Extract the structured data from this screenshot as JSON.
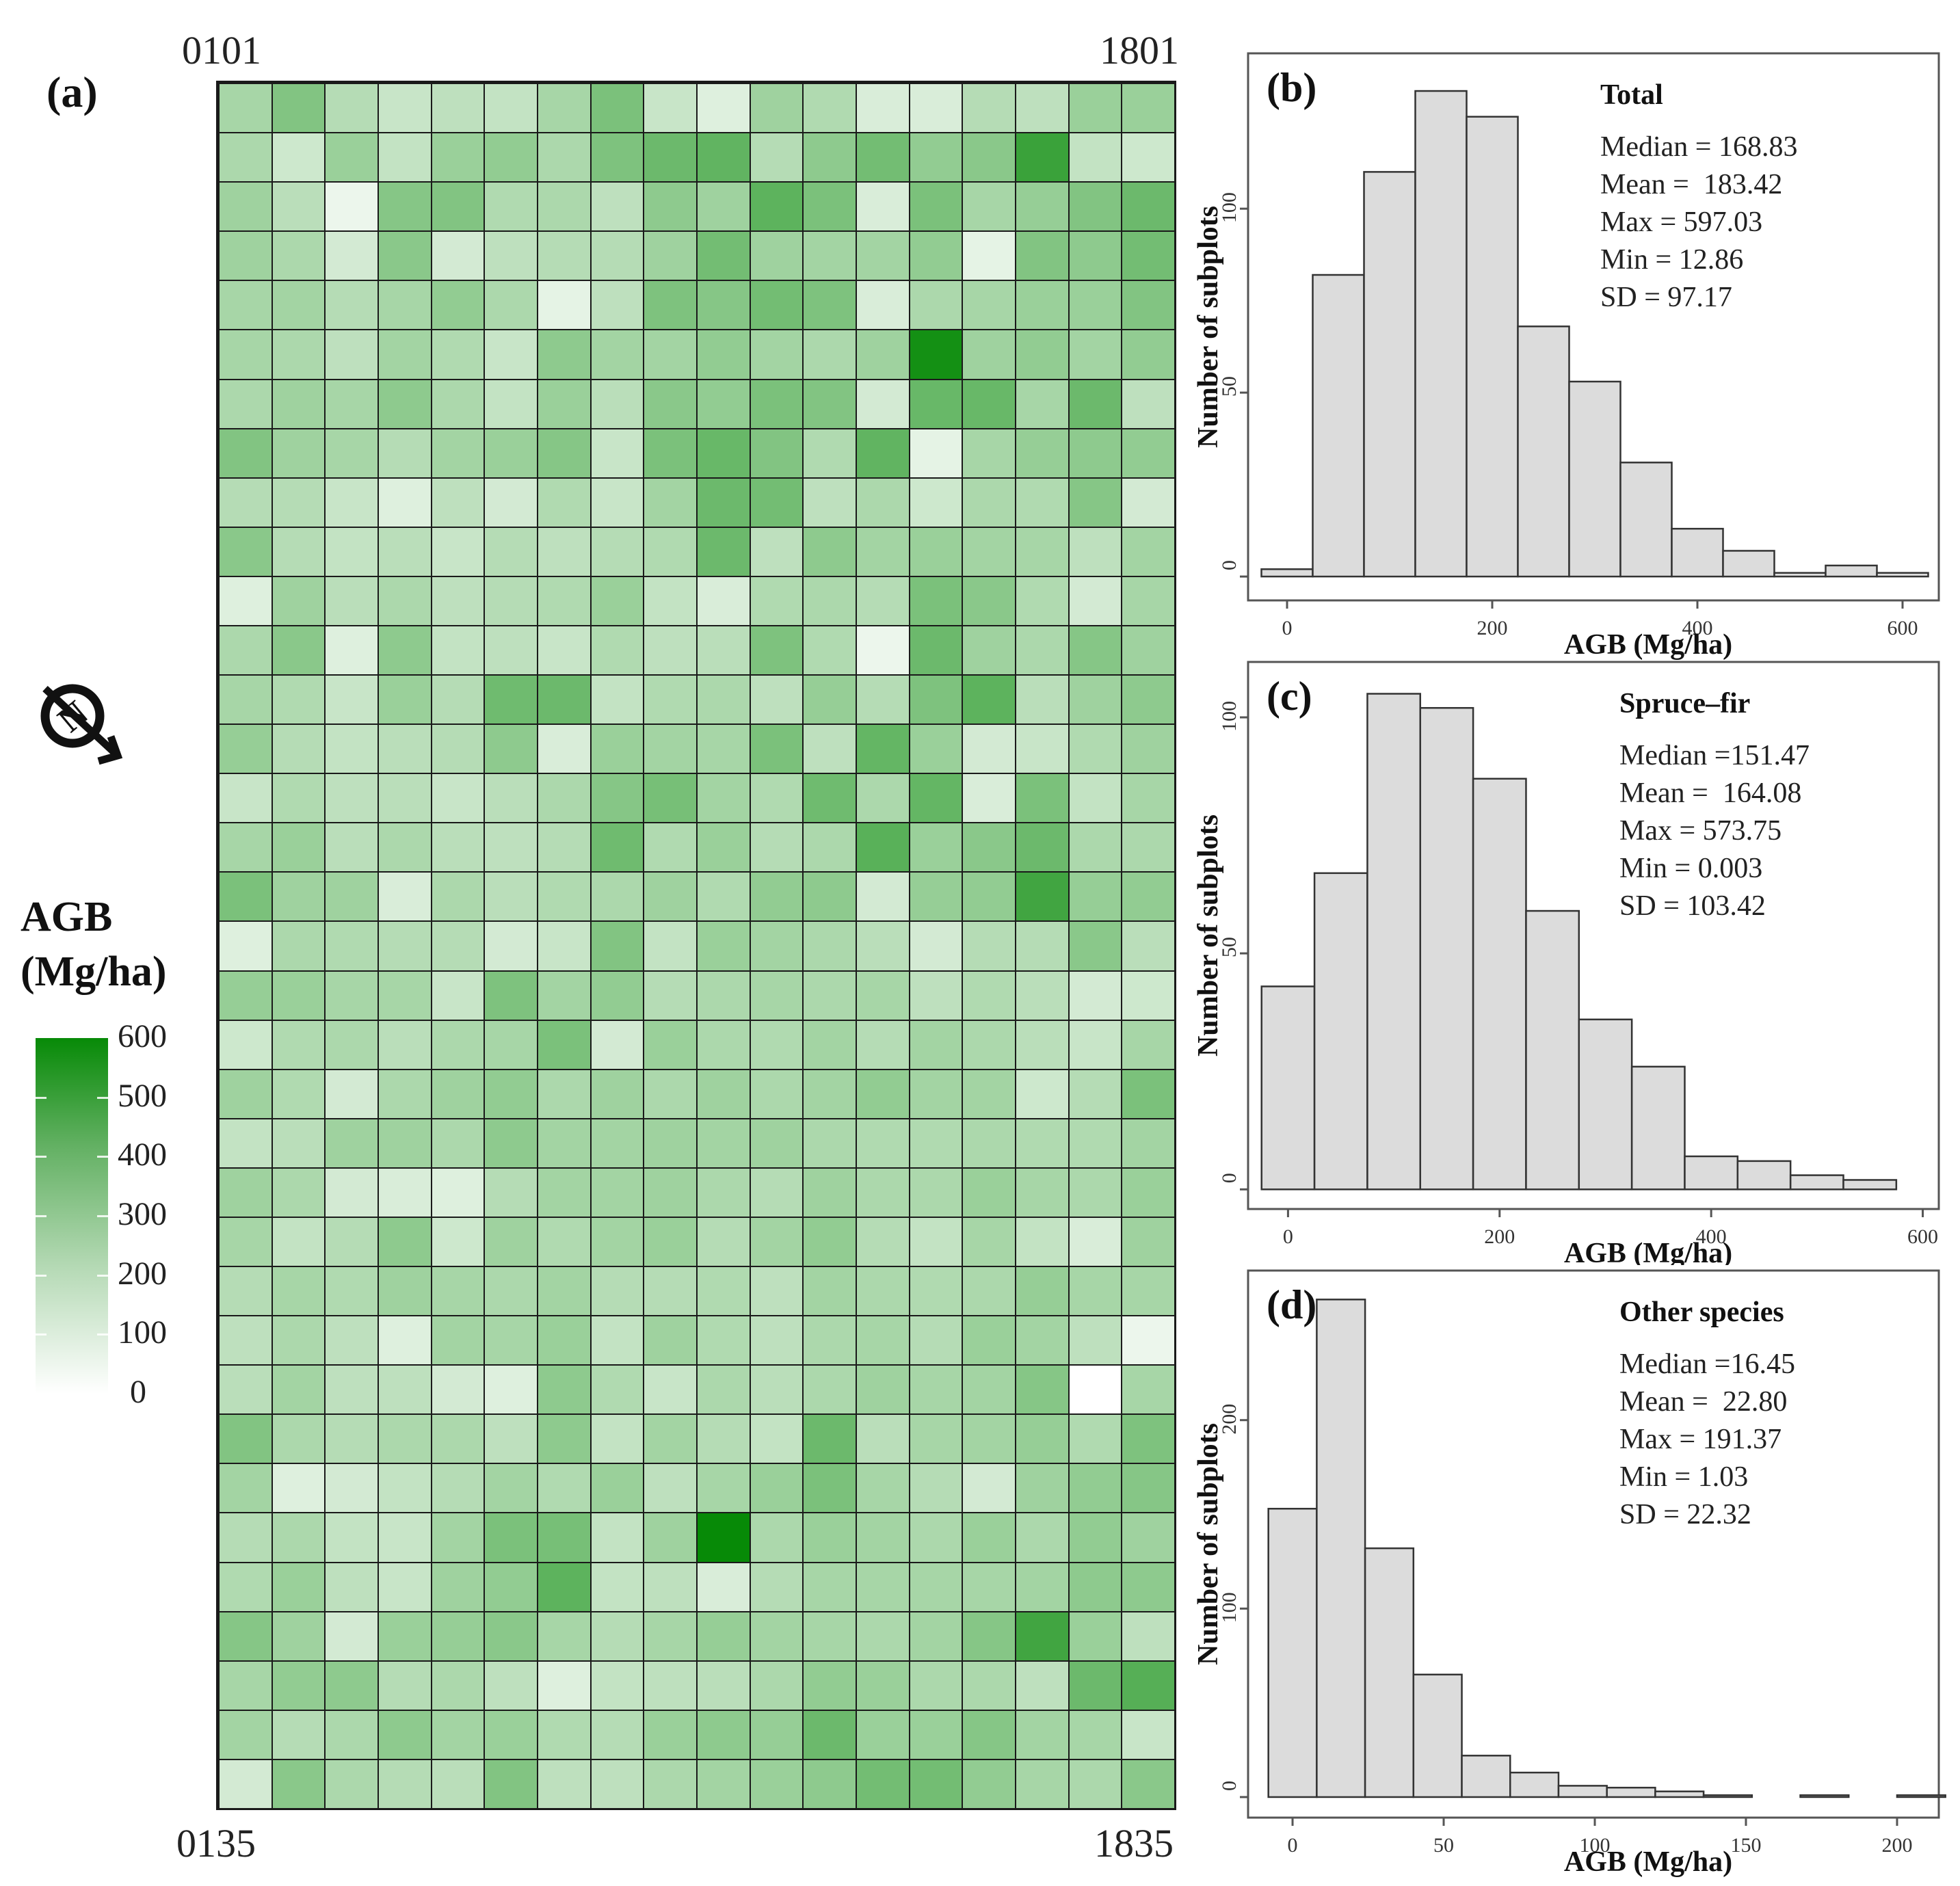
{
  "panel_a": {
    "letter": "(a)",
    "corner_labels": {
      "top_left": "0101",
      "top_right": "1801",
      "bottom_left": "0135",
      "bottom_right": "1835"
    },
    "legend": {
      "title_line1": "AGB",
      "title_line2": "(Mg/ha)",
      "ticks": [
        "600",
        "500",
        "400",
        "300",
        "200",
        "100",
        "0"
      ]
    },
    "north_icon": "north-arrow-icon"
  },
  "colors": {
    "bar_fill": "#dcdcdc",
    "bar_stroke": "#333333",
    "heat_low": "#ffffff",
    "heat_high": "#078a07"
  },
  "chart_data": [
    {
      "id": "a",
      "type": "heatmap",
      "title": "",
      "legend_title": "AGB (Mg/ha)",
      "value_range": [
        0,
        600
      ],
      "columns": 18,
      "rows": 35,
      "values": [
        [
          150,
          240,
          120,
          80,
          100,
          90,
          150,
          260,
          80,
          40,
          170,
          130,
          50,
          50,
          120,
          100,
          180,
          180
        ],
        [
          140,
          70,
          180,
          90,
          180,
          200,
          140,
          250,
          300,
          330,
          120,
          210,
          280,
          200,
          220,
          440,
          90,
          70
        ],
        [
          170,
          110,
          20,
          230,
          240,
          130,
          140,
          100,
          210,
          170,
          340,
          260,
          50,
          260,
          150,
          190,
          240,
          300
        ],
        [
          170,
          140,
          60,
          220,
          60,
          100,
          120,
          120,
          170,
          280,
          170,
          160,
          160,
          200,
          30,
          240,
          210,
          280
        ],
        [
          150,
          160,
          120,
          150,
          200,
          140,
          30,
          100,
          250,
          230,
          280,
          250,
          50,
          140,
          150,
          180,
          180,
          240
        ],
        [
          150,
          140,
          100,
          160,
          130,
          80,
          210,
          160,
          160,
          200,
          160,
          140,
          170,
          560,
          170,
          200,
          160,
          200
        ],
        [
          140,
          170,
          150,
          210,
          140,
          90,
          180,
          110,
          220,
          200,
          260,
          240,
          60,
          310,
          310,
          150,
          300,
          100
        ],
        [
          240,
          170,
          150,
          120,
          160,
          180,
          230,
          80,
          260,
          310,
          240,
          130,
          330,
          30,
          150,
          190,
          210,
          200
        ],
        [
          120,
          120,
          80,
          40,
          100,
          60,
          130,
          80,
          160,
          300,
          280,
          100,
          140,
          70,
          140,
          130,
          230,
          60
        ],
        [
          220,
          120,
          90,
          110,
          80,
          120,
          100,
          120,
          130,
          300,
          100,
          210,
          160,
          180,
          160,
          150,
          100,
          160
        ],
        [
          40,
          170,
          110,
          140,
          100,
          120,
          130,
          180,
          90,
          50,
          130,
          140,
          120,
          260,
          220,
          130,
          60,
          150
        ],
        [
          140,
          220,
          40,
          210,
          90,
          100,
          80,
          130,
          100,
          110,
          250,
          130,
          20,
          300,
          170,
          140,
          230,
          170
        ],
        [
          150,
          130,
          80,
          180,
          120,
          290,
          300,
          90,
          130,
          140,
          100,
          190,
          120,
          250,
          340,
          110,
          170,
          210
        ],
        [
          190,
          120,
          90,
          110,
          120,
          210,
          50,
          180,
          160,
          150,
          260,
          100,
          320,
          180,
          60,
          80,
          130,
          170
        ],
        [
          80,
          130,
          100,
          110,
          80,
          110,
          140,
          230,
          270,
          160,
          130,
          290,
          140,
          320,
          50,
          260,
          90,
          150
        ],
        [
          150,
          180,
          110,
          140,
          110,
          100,
          120,
          290,
          130,
          180,
          120,
          140,
          350,
          180,
          220,
          300,
          140,
          140
        ],
        [
          260,
          170,
          170,
          50,
          140,
          110,
          130,
          140,
          170,
          130,
          200,
          210,
          60,
          190,
          200,
          420,
          190,
          200
        ],
        [
          40,
          140,
          130,
          120,
          120,
          60,
          80,
          240,
          90,
          180,
          160,
          140,
          110,
          60,
          120,
          120,
          220,
          110
        ],
        [
          190,
          180,
          150,
          150,
          80,
          250,
          160,
          200,
          120,
          140,
          150,
          140,
          150,
          100,
          130,
          110,
          60,
          70
        ],
        [
          70,
          130,
          140,
          110,
          140,
          150,
          260,
          60,
          180,
          140,
          130,
          160,
          120,
          160,
          140,
          110,
          80,
          150
        ],
        [
          170,
          130,
          60,
          140,
          170,
          200,
          140,
          170,
          140,
          170,
          140,
          160,
          200,
          160,
          160,
          70,
          120,
          260
        ],
        [
          90,
          110,
          170,
          170,
          140,
          210,
          160,
          160,
          170,
          160,
          170,
          140,
          130,
          130,
          140,
          130,
          130,
          160
        ],
        [
          170,
          140,
          60,
          50,
          40,
          120,
          160,
          160,
          170,
          140,
          120,
          170,
          140,
          140,
          180,
          150,
          140,
          180
        ],
        [
          150,
          90,
          120,
          210,
          70,
          170,
          130,
          160,
          180,
          120,
          160,
          200,
          120,
          90,
          150,
          90,
          50,
          170
        ],
        [
          120,
          150,
          130,
          170,
          150,
          140,
          160,
          120,
          120,
          130,
          100,
          160,
          140,
          130,
          140,
          190,
          150,
          150
        ],
        [
          100,
          140,
          100,
          40,
          160,
          150,
          180,
          90,
          170,
          130,
          100,
          140,
          150,
          120,
          180,
          160,
          100,
          20
        ],
        [
          110,
          160,
          100,
          100,
          60,
          40,
          210,
          130,
          80,
          140,
          110,
          140,
          170,
          150,
          160,
          230,
          0,
          150
        ],
        [
          240,
          140,
          120,
          140,
          140,
          100,
          210,
          90,
          160,
          120,
          90,
          300,
          110,
          150,
          160,
          190,
          130,
          250
        ],
        [
          160,
          40,
          60,
          90,
          120,
          160,
          130,
          180,
          100,
          150,
          180,
          260,
          150,
          120,
          60,
          170,
          200,
          230
        ],
        [
          120,
          140,
          90,
          80,
          160,
          260,
          270,
          90,
          170,
          600,
          140,
          180,
          160,
          140,
          180,
          140,
          200,
          170
        ],
        [
          130,
          180,
          100,
          80,
          170,
          200,
          340,
          90,
          100,
          50,
          120,
          150,
          150,
          150,
          150,
          160,
          210,
          210
        ],
        [
          230,
          170,
          60,
          180,
          190,
          220,
          150,
          120,
          150,
          190,
          160,
          150,
          140,
          160,
          230,
          420,
          180,
          100
        ],
        [
          150,
          200,
          210,
          120,
          140,
          100,
          40,
          90,
          100,
          110,
          140,
          200,
          180,
          140,
          140,
          100,
          300,
          360
        ],
        [
          160,
          120,
          140,
          210,
          160,
          180,
          130,
          120,
          180,
          210,
          190,
          300,
          180,
          180,
          230,
          160,
          150,
          80
        ],
        [
          60,
          220,
          140,
          120,
          110,
          240,
          100,
          100,
          140,
          160,
          180,
          210,
          280,
          280,
          200,
          150,
          140,
          220
        ]
      ]
    },
    {
      "id": "b",
      "type": "bar",
      "panel_letter": "(b)",
      "title": "Total",
      "xlabel": "AGB (Mg/ha)",
      "ylabel": "Number of subplots",
      "stats": [
        "Median = 168.83",
        "Mean =  183.42",
        "Max = 597.03",
        "Min = 12.86",
        "SD = 97.17"
      ],
      "bin_width": 50,
      "bin_centers": [
        0,
        50,
        100,
        150,
        200,
        250,
        300,
        350,
        400,
        450,
        500,
        550,
        600
      ],
      "values": [
        2,
        82,
        110,
        132,
        125,
        68,
        53,
        31,
        13,
        7,
        1,
        3,
        1
      ],
      "xlim": [
        -30,
        630
      ],
      "ylim": [
        -5,
        140
      ],
      "xticks": [
        0,
        200,
        400,
        600
      ],
      "yticks": [
        0,
        50,
        100
      ]
    },
    {
      "id": "c",
      "type": "bar",
      "panel_letter": "(c)",
      "title": "Spruce–fir",
      "xlabel": "AGB (Mg/ha)",
      "ylabel": "Number of subplots",
      "stats": [
        "Median =151.47",
        "Mean =  164.08",
        "Max = 573.75",
        "Min = 0.003",
        "SD = 103.42"
      ],
      "bin_width": 50,
      "bin_centers": [
        0,
        50,
        100,
        150,
        200,
        250,
        300,
        350,
        400,
        450,
        500,
        550
      ],
      "values": [
        43,
        67,
        105,
        102,
        87,
        59,
        36,
        26,
        7,
        6,
        3,
        2
      ],
      "xlim": [
        -30,
        610
      ],
      "ylim": [
        -3,
        110
      ],
      "xticks": [
        0,
        200,
        400,
        600
      ],
      "yticks": [
        0,
        50,
        100
      ]
    },
    {
      "id": "d",
      "type": "bar",
      "panel_letter": "(d)",
      "title": "Other species",
      "xlabel": "AGB (Mg/ha)",
      "ylabel": "Number of subplots",
      "stats": [
        "Median =16.45",
        "Mean =  22.80",
        "Max = 191.37",
        "Min = 1.03",
        "SD = 22.32"
      ],
      "bin_width": 16,
      "bin_centers": [
        0,
        16,
        32,
        48,
        64,
        80,
        96,
        112,
        128,
        144,
        160,
        176,
        192,
        208
      ],
      "values": [
        153,
        264,
        132,
        65,
        22,
        13,
        6,
        5,
        3,
        1,
        0,
        1,
        0,
        1
      ],
      "xlim": [
        -12,
        212
      ],
      "ylim": [
        -8,
        275
      ],
      "xticks": [
        0,
        50,
        100,
        150,
        200
      ],
      "yticks": [
        0,
        100,
        200
      ]
    }
  ]
}
